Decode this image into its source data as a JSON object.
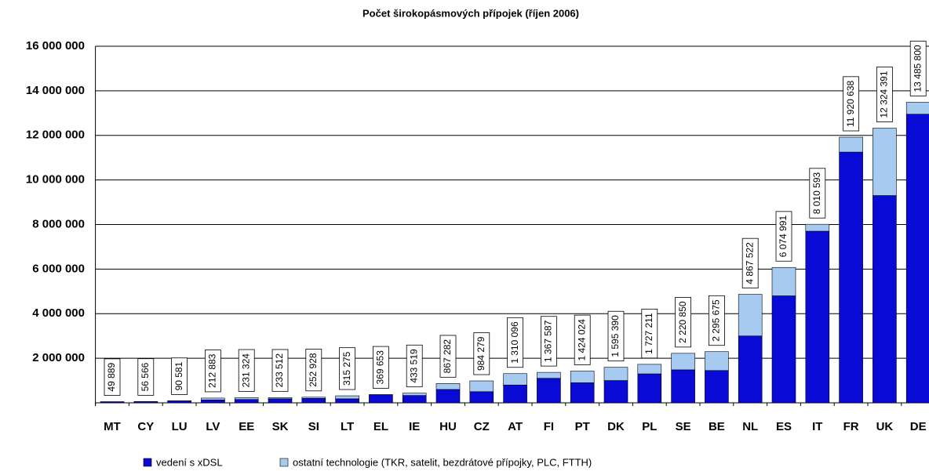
{
  "chart_data": {
    "type": "stacked_bar",
    "title": "Počet širokopásmových přípojek (říjen 2006)",
    "categories": [
      "MT",
      "CY",
      "LU",
      "LV",
      "EE",
      "SK",
      "SI",
      "LT",
      "EL",
      "IE",
      "HU",
      "CZ",
      "AT",
      "FI",
      "PT",
      "DK",
      "PL",
      "SE",
      "BE",
      "NL",
      "ES",
      "IT",
      "FR",
      "UK",
      "DE"
    ],
    "series": [
      {
        "name": "vedení s xDSL",
        "color": "#0a0ad6",
        "values": [
          45000,
          52000,
          85000,
          130000,
          150000,
          180000,
          200000,
          180000,
          360000,
          330000,
          600000,
          500000,
          800000,
          1100000,
          900000,
          1000000,
          1300000,
          1480000,
          1450000,
          3000000,
          4800000,
          7700000,
          11250000,
          9300000,
          12950000
        ]
      },
      {
        "name": "ostatní technologie (TKR, satelit, bezdrátové přípojky, PLC, FTTH)",
        "color": "#a6caf0",
        "values": [
          4889,
          4566,
          5581,
          82883,
          81324,
          53512,
          52928,
          135275,
          9653,
          103519,
          267282,
          484279,
          510096,
          267587,
          524024,
          595390,
          427211,
          740850,
          845675,
          1867522,
          1274991,
          310593,
          670638,
          3024391,
          535800
        ]
      }
    ],
    "totals": [
      49889,
      56566,
      90581,
      212883,
      231324,
      233512,
      252928,
      315275,
      369653,
      433519,
      867282,
      984279,
      1310096,
      1367587,
      1424024,
      1595390,
      1727211,
      2220850,
      2295675,
      4867522,
      6074991,
      8010593,
      11920638,
      12324391,
      13485800
    ],
    "total_labels": [
      "49 889",
      "56 566",
      "90 581",
      "212 883",
      "231 324",
      "233 512",
      "252 928",
      "315 275",
      "369 653",
      "433 519",
      "867 282",
      "984 279",
      "1 310 096",
      "1 367 587",
      "1 424 024",
      "1 595 390",
      "1 727 211",
      "2 220 850",
      "2 295 675",
      "4 867 522",
      "6 074 991",
      "8 010 593",
      "11 920 638",
      "12 324 391",
      "13 485 800"
    ],
    "ylim": [
      0,
      16000000
    ],
    "yticks": [
      0,
      {
        "value": 2000000,
        "label": "2 000 000"
      },
      {
        "value": 4000000,
        "label": "4 000 000"
      },
      {
        "value": 6000000,
        "label": "6 000 000"
      },
      {
        "value": 8000000,
        "label": "8 000 000"
      },
      {
        "value": 10000000,
        "label": "10 000 000"
      },
      {
        "value": 12000000,
        "label": "12 000 000"
      },
      {
        "value": 14000000,
        "label": "14 000 000"
      },
      {
        "value": 16000000,
        "label": "16 000 000"
      }
    ],
    "grid": true
  }
}
